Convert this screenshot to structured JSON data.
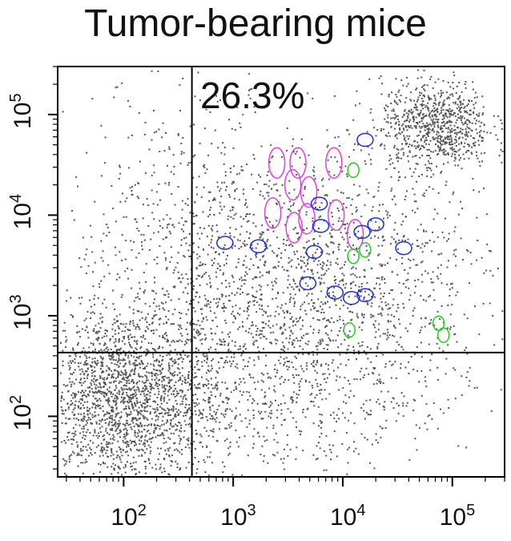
{
  "title": "Tumor-bearing mice",
  "quadrant_label": "26.3%",
  "colors": {
    "dots": "#555555",
    "frame": "#000000",
    "gate_line": "#000000",
    "highlight_magenta": "#e040e0",
    "highlight_blue": "#1a2ee0",
    "highlight_green": "#22cc22"
  },
  "chart_data": {
    "type": "scatter",
    "title": "Tumor-bearing mice",
    "x_scale": "log",
    "y_scale": "log",
    "xlim": [
      25,
      300000
    ],
    "ylim": [
      25,
      300000
    ],
    "x_tick_labels": [
      {
        "value": 100,
        "base": "10",
        "exp": "2"
      },
      {
        "value": 1000,
        "base": "10",
        "exp": "3"
      },
      {
        "value": 10000,
        "base": "10",
        "exp": "4"
      },
      {
        "value": 100000,
        "base": "10",
        "exp": "5"
      }
    ],
    "y_tick_labels": [
      {
        "value": 100,
        "base": "10",
        "exp": "2"
      },
      {
        "value": 1000,
        "base": "10",
        "exp": "3"
      },
      {
        "value": 10000,
        "base": "10",
        "exp": "4"
      },
      {
        "value": 100000,
        "base": "10",
        "exp": "5"
      }
    ],
    "gates": {
      "x": 420,
      "y": 430
    },
    "annotation": {
      "text": "26.3%",
      "quadrant": "upper-right"
    },
    "populations": [
      {
        "cx": 100,
        "cy": 150,
        "spread_x": 0.45,
        "spread_y": 0.45,
        "n": 2200
      },
      {
        "cx": 70000,
        "cy": 80000,
        "spread_x": 0.25,
        "spread_y": 0.22,
        "n": 800
      },
      {
        "cx": 3500,
        "cy": 2000,
        "spread_x": 0.7,
        "spread_y": 0.7,
        "n": 1400
      },
      {
        "cx": 300,
        "cy": 6000,
        "spread_x": 0.5,
        "spread_y": 0.8,
        "n": 450
      },
      {
        "cx": 3000,
        "cy": 200,
        "spread_x": 0.6,
        "spread_y": 0.5,
        "n": 400
      },
      {
        "cx": 30000,
        "cy": 2000,
        "spread_x": 0.5,
        "spread_y": 0.8,
        "n": 350
      }
    ],
    "highlight_ellipses": [
      {
        "color": "magenta",
        "x": 2500,
        "y": 33000
      },
      {
        "color": "magenta",
        "x": 3900,
        "y": 33000
      },
      {
        "color": "magenta",
        "x": 8300,
        "y": 33000
      },
      {
        "color": "magenta",
        "x": 3500,
        "y": 20000
      },
      {
        "color": "magenta",
        "x": 4900,
        "y": 17000
      },
      {
        "color": "magenta",
        "x": 2300,
        "y": 10500
      },
      {
        "color": "magenta",
        "x": 3600,
        "y": 7500
      },
      {
        "color": "magenta",
        "x": 4700,
        "y": 9200
      },
      {
        "color": "magenta",
        "x": 8700,
        "y": 10000
      },
      {
        "color": "magenta",
        "x": 13000,
        "y": 6400
      },
      {
        "color": "blue",
        "x": 16000,
        "y": 56000
      },
      {
        "color": "blue",
        "x": 6100,
        "y": 13000
      },
      {
        "color": "blue",
        "x": 6300,
        "y": 7800
      },
      {
        "color": "blue",
        "x": 15000,
        "y": 6800
      },
      {
        "color": "blue",
        "x": 20000,
        "y": 8100
      },
      {
        "color": "blue",
        "x": 840,
        "y": 5300
      },
      {
        "color": "blue",
        "x": 1700,
        "y": 4900
      },
      {
        "color": "blue",
        "x": 5500,
        "y": 4300
      },
      {
        "color": "blue",
        "x": 36000,
        "y": 4700
      },
      {
        "color": "blue",
        "x": 4800,
        "y": 2100
      },
      {
        "color": "blue",
        "x": 8500,
        "y": 1700
      },
      {
        "color": "blue",
        "x": 12000,
        "y": 1500
      },
      {
        "color": "blue",
        "x": 16000,
        "y": 1600
      },
      {
        "color": "green",
        "x": 12500,
        "y": 28000
      },
      {
        "color": "green",
        "x": 12500,
        "y": 3900
      },
      {
        "color": "green",
        "x": 16000,
        "y": 4500
      },
      {
        "color": "green",
        "x": 11500,
        "y": 720
      },
      {
        "color": "green",
        "x": 75000,
        "y": 840
      },
      {
        "color": "green",
        "x": 83000,
        "y": 640
      }
    ]
  }
}
